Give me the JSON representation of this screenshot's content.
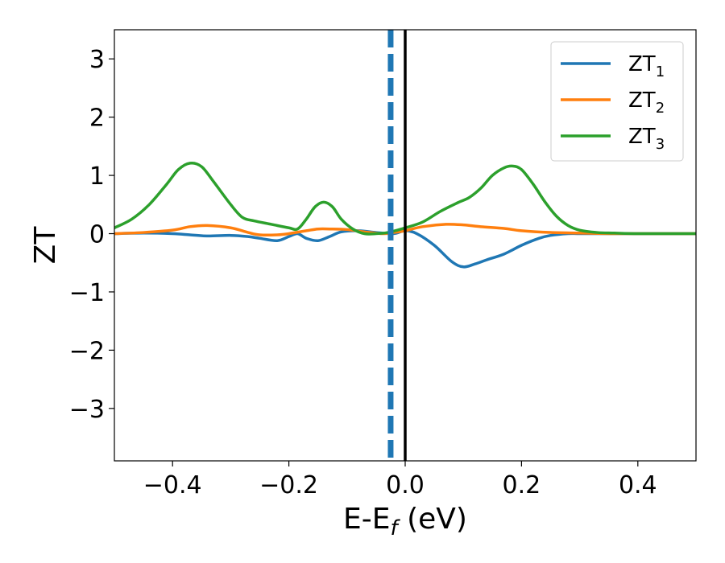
{
  "chart_data": {
    "type": "line",
    "xlabel": "E-E",
    "xlabel_sub": "f",
    "xlabel_unit": " (eV)",
    "ylabel": "ZT",
    "xlim": [
      -0.5,
      0.5
    ],
    "ylim": [
      -3.9,
      3.5
    ],
    "xticks": [
      -0.4,
      -0.2,
      0.0,
      0.2,
      0.4
    ],
    "xtick_labels": [
      "−0.4",
      "−0.2",
      "0.0",
      "0.2",
      "0.4"
    ],
    "yticks": [
      -3,
      -2,
      -1,
      0,
      1,
      2,
      3
    ],
    "ytick_labels": [
      "−3",
      "−2",
      "−1",
      "0",
      "1",
      "2",
      "3"
    ],
    "grid": false,
    "legend_position": "top-right",
    "vertical_lines": [
      {
        "x": -0.025,
        "style": "dashed",
        "color": "#1f77b4"
      },
      {
        "x": 0.0,
        "style": "solid",
        "color": "#000000"
      }
    ],
    "series": [
      {
        "name": "ZT",
        "name_sub": "1",
        "color": "#1f77b4",
        "x": [
          -0.5,
          -0.45,
          -0.4,
          -0.37,
          -0.34,
          -0.3,
          -0.27,
          -0.25,
          -0.22,
          -0.2,
          -0.185,
          -0.17,
          -0.15,
          -0.13,
          -0.11,
          -0.08,
          -0.05,
          -0.02,
          0.0,
          0.02,
          0.05,
          0.08,
          0.1,
          0.12,
          0.14,
          0.17,
          0.2,
          0.23,
          0.25,
          0.28,
          0.3,
          0.35,
          0.4,
          0.45,
          0.5
        ],
        "y": [
          0.0,
          0.01,
          0.0,
          -0.02,
          -0.04,
          -0.03,
          -0.05,
          -0.08,
          -0.12,
          -0.05,
          0.0,
          -0.08,
          -0.12,
          -0.05,
          0.03,
          0.05,
          0.02,
          0.0,
          0.05,
          0.0,
          -0.2,
          -0.48,
          -0.57,
          -0.52,
          -0.45,
          -0.35,
          -0.2,
          -0.08,
          -0.03,
          0.0,
          0.0,
          0.0,
          0.0,
          0.0,
          0.0
        ]
      },
      {
        "name": "ZT",
        "name_sub": "2",
        "color": "#ff7f0e",
        "x": [
          -0.5,
          -0.45,
          -0.4,
          -0.37,
          -0.34,
          -0.3,
          -0.27,
          -0.25,
          -0.22,
          -0.2,
          -0.17,
          -0.15,
          -0.13,
          -0.1,
          -0.07,
          -0.04,
          -0.02,
          0.0,
          0.03,
          0.07,
          0.1,
          0.13,
          0.17,
          0.2,
          0.25,
          0.3,
          0.35,
          0.4,
          0.45,
          0.5
        ],
        "y": [
          0.0,
          0.02,
          0.06,
          0.12,
          0.14,
          0.1,
          0.02,
          -0.02,
          -0.02,
          0.0,
          0.05,
          0.08,
          0.08,
          0.07,
          0.03,
          0.0,
          0.02,
          0.05,
          0.12,
          0.16,
          0.15,
          0.12,
          0.09,
          0.05,
          0.02,
          0.01,
          0.0,
          0.0,
          0.0,
          0.0
        ]
      },
      {
        "name": "ZT",
        "name_sub": "3",
        "color": "#2ca02c",
        "x": [
          -0.5,
          -0.47,
          -0.44,
          -0.41,
          -0.39,
          -0.37,
          -0.35,
          -0.33,
          -0.3,
          -0.28,
          -0.26,
          -0.23,
          -0.2,
          -0.185,
          -0.17,
          -0.155,
          -0.14,
          -0.125,
          -0.11,
          -0.09,
          -0.07,
          -0.05,
          -0.03,
          0.0,
          0.03,
          0.06,
          0.09,
          0.11,
          0.13,
          0.15,
          0.17,
          0.185,
          0.2,
          0.22,
          0.24,
          0.26,
          0.28,
          0.3,
          0.33,
          0.36,
          0.4,
          0.45,
          0.5
        ],
        "y": [
          0.1,
          0.25,
          0.5,
          0.85,
          1.1,
          1.21,
          1.15,
          0.9,
          0.5,
          0.28,
          0.22,
          0.16,
          0.1,
          0.08,
          0.25,
          0.46,
          0.54,
          0.46,
          0.25,
          0.08,
          0.0,
          0.0,
          0.02,
          0.1,
          0.2,
          0.38,
          0.53,
          0.62,
          0.78,
          1.0,
          1.13,
          1.16,
          1.1,
          0.85,
          0.55,
          0.3,
          0.14,
          0.06,
          0.02,
          0.01,
          0.0,
          0.0,
          0.0
        ]
      }
    ]
  }
}
